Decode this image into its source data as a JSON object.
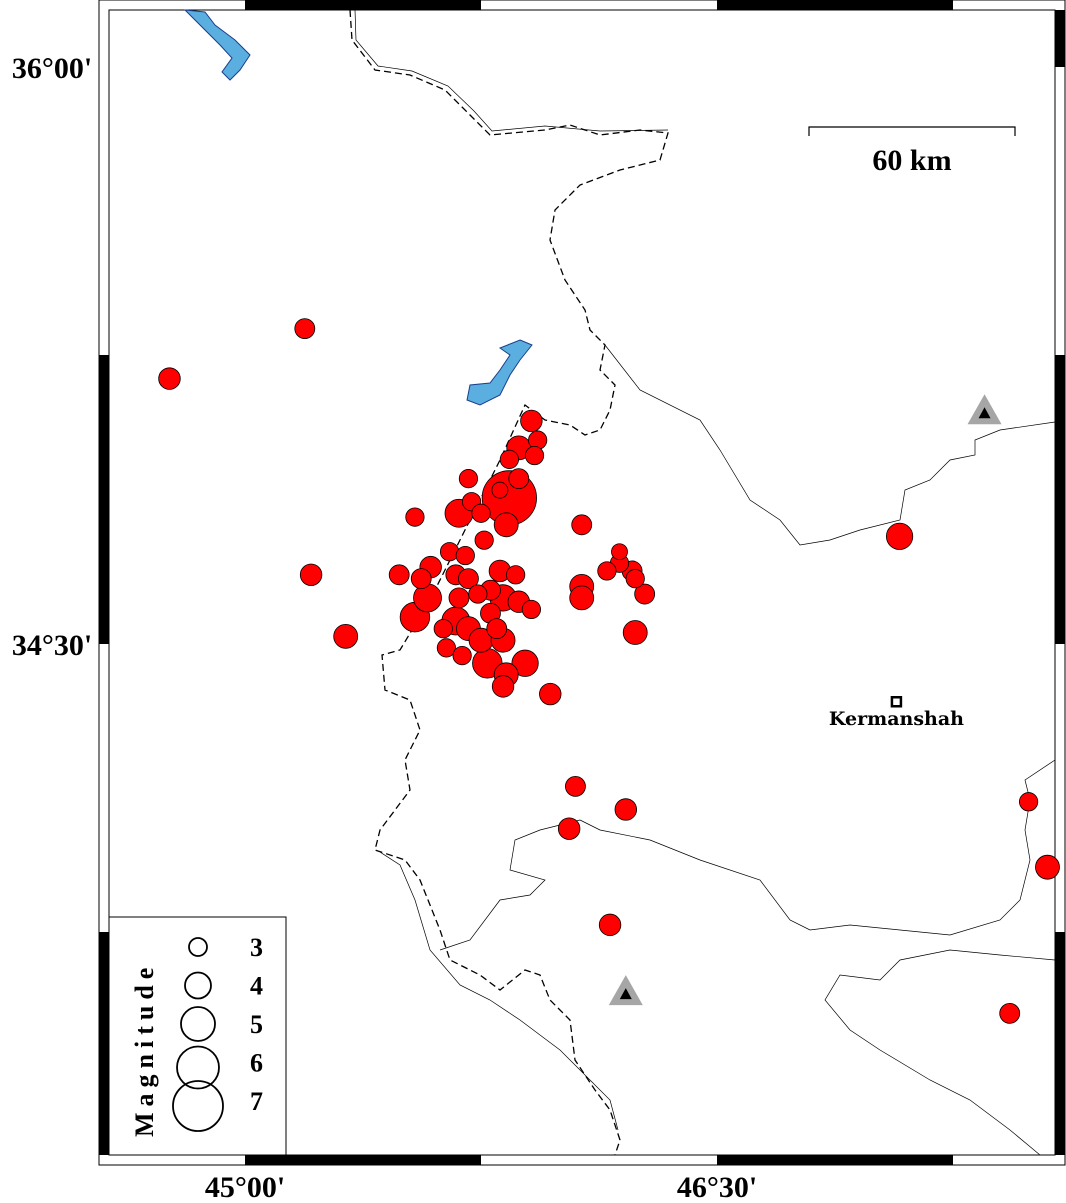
{
  "map": {
    "extent": {
      "lon": [
        44.536,
        47.6
      ],
      "lat": [
        33.151,
        36.174
      ]
    },
    "lat_labels": [
      {
        "lat": 36.0,
        "text": "36°00'"
      },
      {
        "lat": 34.5,
        "text": "34°30'"
      }
    ],
    "lon_labels": [
      {
        "lon": 45.0,
        "text": "45°00'"
      },
      {
        "lon": 46.5,
        "text": "46°30'"
      }
    ],
    "scale_bar": {
      "label": "60 km"
    },
    "city": {
      "name": "Kermanshah",
      "lon": 47.07,
      "lat": 34.35
    },
    "stations": [
      {
        "lon": 47.35,
        "lat": 35.1
      },
      {
        "lon": 46.21,
        "lat": 33.59
      }
    ],
    "colors": {
      "event": "#ff0000",
      "lake": "#5aaee0",
      "station": "#a6a6a6"
    }
  },
  "legend": {
    "title": "Magnitude",
    "items": [
      {
        "mag": 3,
        "label": "3"
      },
      {
        "mag": 4,
        "label": "4"
      },
      {
        "mag": 5,
        "label": "5"
      },
      {
        "mag": 6,
        "label": "6"
      },
      {
        "mag": 7,
        "label": "7"
      }
    ]
  },
  "events": [
    [
      45.19,
      35.32,
      3.0
    ],
    [
      44.76,
      35.19,
      3.2
    ],
    [
      45.91,
      35.08,
      3.2
    ],
    [
      45.87,
      35.01,
      3.5
    ],
    [
      45.93,
      35.03,
      2.8
    ],
    [
      45.92,
      34.99,
      2.8
    ],
    [
      45.84,
      34.98,
      2.8
    ],
    [
      45.71,
      34.93,
      2.8
    ],
    [
      45.84,
      34.88,
      7.3
    ],
    [
      45.87,
      34.93,
      3.0
    ],
    [
      45.81,
      34.9,
      2.5
    ],
    [
      45.72,
      34.87,
      2.8
    ],
    [
      45.68,
      34.84,
      4.0
    ],
    [
      45.75,
      34.84,
      2.8
    ],
    [
      45.83,
      34.81,
      3.5
    ],
    [
      45.54,
      34.83,
      2.8
    ],
    [
      45.76,
      34.77,
      2.8
    ],
    [
      46.07,
      34.81,
      3.0
    ],
    [
      47.08,
      34.78,
      3.8
    ],
    [
      45.21,
      34.68,
      3.2
    ],
    [
      45.32,
      34.52,
      3.5
    ],
    [
      45.49,
      34.68,
      3.0
    ],
    [
      45.59,
      34.7,
      3.2
    ],
    [
      45.65,
      34.74,
      2.8
    ],
    [
      45.7,
      34.73,
      2.8
    ],
    [
      45.67,
      34.68,
      3.0
    ],
    [
      45.56,
      34.67,
      3.0
    ],
    [
      45.58,
      34.62,
      4.0
    ],
    [
      45.54,
      34.57,
      4.2
    ],
    [
      45.71,
      34.67,
      3.0
    ],
    [
      45.81,
      34.69,
      3.2
    ],
    [
      45.86,
      34.68,
      2.8
    ],
    [
      45.78,
      34.64,
      3.0
    ],
    [
      45.68,
      34.62,
      3.0
    ],
    [
      45.74,
      34.63,
      2.8
    ],
    [
      45.82,
      34.62,
      3.8
    ],
    [
      45.87,
      34.61,
      3.2
    ],
    [
      45.91,
      34.59,
      2.8
    ],
    [
      45.63,
      34.54,
      2.8
    ],
    [
      45.67,
      34.56,
      4.0
    ],
    [
      45.71,
      34.54,
      3.5
    ],
    [
      45.78,
      34.58,
      3.0
    ],
    [
      45.8,
      34.54,
      3.0
    ],
    [
      45.75,
      34.51,
      3.5
    ],
    [
      45.82,
      34.51,
      3.5
    ],
    [
      45.64,
      34.49,
      2.8
    ],
    [
      45.69,
      34.47,
      2.8
    ],
    [
      45.77,
      34.45,
      4.2
    ],
    [
      45.83,
      34.42,
      3.5
    ],
    [
      45.89,
      34.45,
      3.8
    ],
    [
      45.82,
      34.39,
      3.2
    ],
    [
      45.97,
      34.37,
      3.2
    ],
    [
      46.07,
      34.65,
      3.5
    ],
    [
      46.07,
      34.62,
      3.5
    ],
    [
      46.19,
      34.74,
      2.5
    ],
    [
      46.19,
      34.71,
      2.8
    ],
    [
      46.15,
      34.69,
      2.8
    ],
    [
      46.23,
      34.69,
      3.0
    ],
    [
      46.24,
      34.67,
      2.8
    ],
    [
      46.27,
      34.63,
      3.0
    ],
    [
      46.24,
      34.53,
      3.5
    ],
    [
      46.05,
      34.13,
      3.0
    ],
    [
      46.03,
      34.02,
      3.2
    ],
    [
      46.21,
      34.07,
      3.2
    ],
    [
      46.16,
      33.77,
      3.2
    ],
    [
      47.49,
      34.09,
      2.8
    ],
    [
      47.55,
      33.92,
      3.5
    ],
    [
      47.43,
      33.54,
      3.0
    ]
  ]
}
